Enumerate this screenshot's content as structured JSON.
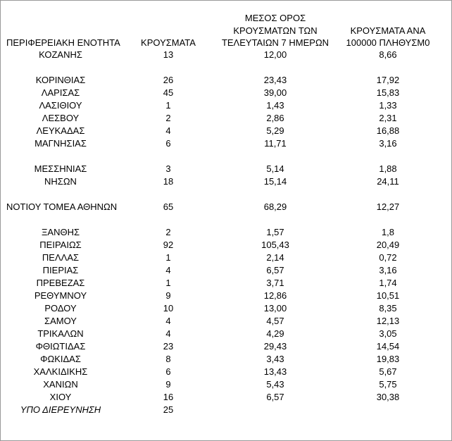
{
  "table": {
    "header": [
      [
        "ΠΕΡΙΦΕΡΕΙΑΚΗ ΕΝΟΤΗΤΑ"
      ],
      [
        "ΚΡΟΥΣΜΑΤΑ"
      ],
      [
        "ΜΕΣΟΣ ΟΡΟΣ",
        "ΚΡΟΥΣΜΑΤΩΝ ΤΩΝ",
        "ΤΕΛΕΥΤΑΙΩΝ 7 ΗΜΕΡΩΝ"
      ],
      [
        "ΚΡΟΥΣΜΑΤΑ ΑΝΑ",
        "100000 ΠΛΗΘΥΣΜ0"
      ]
    ],
    "rows": [
      [
        "ΚΟΖΑΝΗΣ",
        "13",
        "12,00",
        "8,66"
      ],
      [
        "ΚΟΡΙΝΘΙΑΣ",
        "26",
        "23,43",
        "17,92"
      ],
      [
        "ΛΑΡΙΣΑΣ",
        "45",
        "39,00",
        "15,83"
      ],
      [
        "ΛΑΣΙΘΙΟΥ",
        "1",
        "1,43",
        "1,33"
      ],
      [
        "ΛΕΣΒΟΥ",
        "2",
        "2,86",
        "2,31"
      ],
      [
        "ΛΕΥΚΑΔΑΣ",
        "4",
        "5,29",
        "16,88"
      ],
      [
        "ΜΑΓΝΗΣΙΑΣ",
        "6",
        "11,71",
        "3,16"
      ],
      [
        "ΜΕΣΣΗΝΙΑΣ",
        "3",
        "5,14",
        "1,88"
      ],
      [
        "ΝΗΣΩΝ",
        "18",
        "15,14",
        "24,11"
      ],
      [
        "ΝΟΤΙΟΥ ΤΟΜΕΑ ΑΘΗΝΩΝ",
        "65",
        "68,29",
        "12,27"
      ],
      [
        "ΞΑΝΘΗΣ",
        "2",
        "1,57",
        "1,8"
      ],
      [
        "ΠΕΙΡΑΙΩΣ",
        "92",
        "105,43",
        "20,49"
      ],
      [
        "ΠΕΛΛΑΣ",
        "1",
        "2,14",
        "0,72"
      ],
      [
        "ΠΙΕΡΙΑΣ",
        "4",
        "6,57",
        "3,16"
      ],
      [
        "ΠΡΕΒΕΖΑΣ",
        "1",
        "3,71",
        "1,74"
      ],
      [
        "ΡΕΘΥΜΝΟΥ",
        "9",
        "12,86",
        "10,51"
      ],
      [
        "ΡΟΔΟΥ",
        "10",
        "13,00",
        "8,35"
      ],
      [
        "ΣΑΜΟΥ",
        "4",
        "4,57",
        "12,13"
      ],
      [
        "ΤΡΙΚΑΛΩΝ",
        "4",
        "4,29",
        "3,05"
      ],
      [
        "ΦΘΙΩΤΙΔΑΣ",
        "23",
        "29,43",
        "14,54"
      ],
      [
        "ΦΩΚΙΔΑΣ",
        "8",
        "3,43",
        "19,83"
      ],
      [
        "ΧΑΛΚΙΔΙΚΗΣ",
        "6",
        "13,43",
        "5,67"
      ],
      [
        "ΧΑΝΙΩΝ",
        "9",
        "5,43",
        "5,75"
      ],
      [
        "ΧΙΟΥ",
        "16",
        "6,57",
        "30,38"
      ],
      [
        "ΥΠΟ ΔΙΕΡΕΥΝΗΣΗ",
        "25"
      ]
    ]
  }
}
